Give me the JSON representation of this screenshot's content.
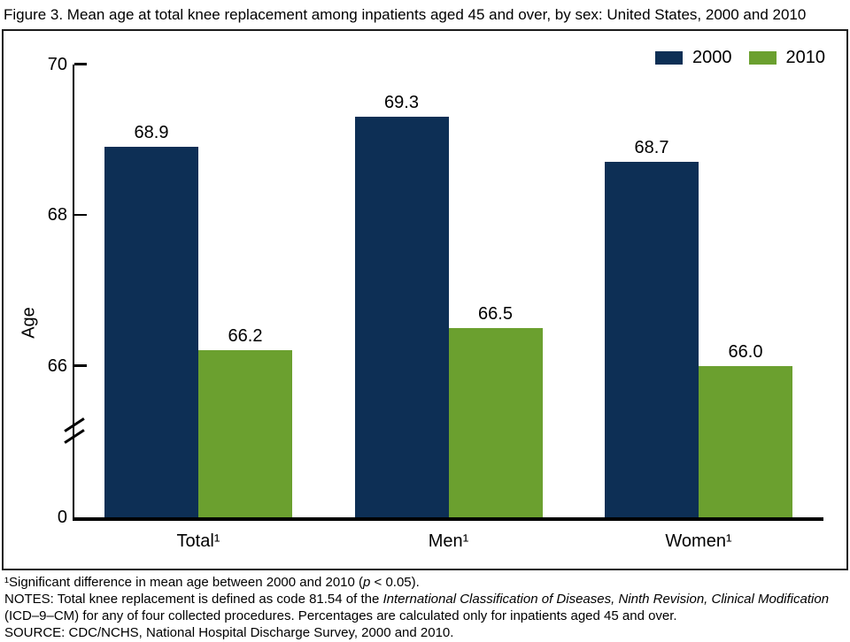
{
  "figure": {
    "title": "Figure 3. Mean age at total knee replacement among inpatients aged 45 and over, by sex: United States, 2000 and 2010"
  },
  "chart_data": {
    "type": "bar",
    "title": "Mean age at total knee replacement among inpatients aged 45 and over, by sex: United States, 2000 and 2010",
    "categories": [
      "Total¹",
      "Men¹",
      "Women¹"
    ],
    "series": [
      {
        "name": "2000",
        "color": "#0d2f55",
        "values": [
          68.9,
          69.3,
          68.7
        ]
      },
      {
        "name": "2010",
        "color": "#6ba02f",
        "values": [
          66.2,
          66.5,
          66.0
        ]
      }
    ],
    "xlabel": "",
    "ylabel": "Age",
    "yticks": [
      70,
      68,
      66,
      0
    ],
    "axis_break_between": [
      0,
      66
    ],
    "visible_value_range": [
      66,
      70
    ],
    "value_labels": [
      [
        68.9,
        69.3,
        68.7
      ],
      [
        66.2,
        66.5,
        66.0
      ]
    ],
    "legend_position": "top-right",
    "grid": false
  },
  "footnotes": {
    "fn1_pre": "¹Significant difference in mean age between 2000 and 2010 (",
    "fn1_italic": "p",
    "fn1_post": " < 0.05).",
    "notes_pre": "NOTES: Total knee replacement is defined as code 81.54 of the ",
    "notes_italic": "International Classification of Diseases, Ninth Revision, Clinical Modification",
    "notes_post": " (ICD–9–CM) for any of four collected procedures. Percentages are calculated only for inpatients aged 45 and over.",
    "source": "SOURCE: CDC/NCHS, National Hospital Discharge Survey, 2000 and 2010."
  }
}
